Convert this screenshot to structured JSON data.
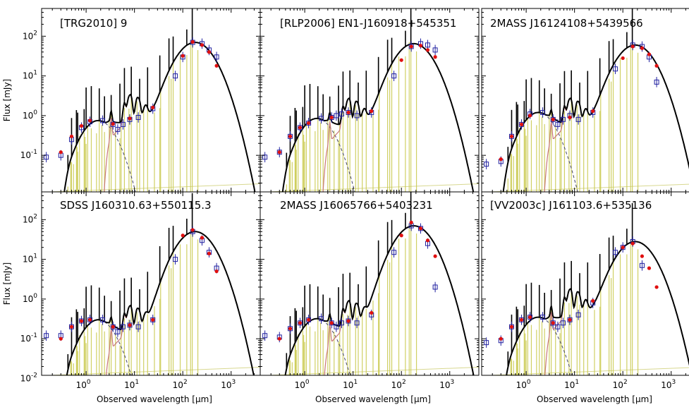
{
  "figure": {
    "ylabel": "Flux [mJy]",
    "xlabel": "Observed wavelength [μm]",
    "xscale": "log",
    "yscale": "log",
    "colors": {
      "total_model": "#000000",
      "dust_emission": "#c87878",
      "stellar_emission": "#444466",
      "line_templates": "#c8c84a",
      "observed_photometry": "#2020a0",
      "model_photometry": "#e01010",
      "flat_continuum": "#d8d890"
    }
  },
  "chart_data": [
    {
      "type": "scatter",
      "title": "[TRG2010] 9",
      "xlim": [
        0.12,
        4000
      ],
      "ylim": [
        0.012,
        500
      ],
      "xscale": "log",
      "yscale": "log",
      "x_tick_labels": [],
      "y_tick_labels": [
        "10^-1",
        "10^0",
        "10^1",
        "10^2"
      ],
      "series": [
        {
          "values": [
            [
              0.15,
              0.09
            ],
            [
              0.3,
              0.1
            ],
            [
              0.5,
              0.25
            ],
            [
              0.8,
              0.5
            ],
            [
              1.2,
              0.7
            ],
            [
              2.2,
              0.75
            ],
            [
              3.6,
              0.6
            ],
            [
              4.5,
              0.45
            ],
            [
              5.8,
              0.6
            ],
            [
              8,
              0.8
            ],
            [
              12,
              0.9
            ],
            [
              24,
              1.5
            ],
            [
              70,
              10
            ],
            [
              100,
              30
            ],
            [
              160,
              70
            ],
            [
              250,
              65
            ],
            [
              350,
              45
            ],
            [
              500,
              30
            ]
          ]
        },
        {
          "values": [
            [
              0.3,
              0.12
            ],
            [
              0.5,
              0.3
            ],
            [
              0.8,
              0.55
            ],
            [
              1.2,
              0.75
            ],
            [
              3.6,
              0.62
            ],
            [
              8,
              0.85
            ],
            [
              24,
              1.6
            ],
            [
              100,
              32
            ],
            [
              160,
              72
            ],
            [
              250,
              60
            ],
            [
              350,
              40
            ],
            [
              500,
              18
            ]
          ]
        }
      ]
    },
    {
      "type": "scatter",
      "title": "[RLP2006] EN1-J160918+545351",
      "xlim": [
        0.12,
        4000
      ],
      "ylim": [
        0.012,
        500
      ],
      "xscale": "log",
      "yscale": "log",
      "x_tick_labels": [],
      "y_tick_labels": [],
      "series": [
        {
          "values": [
            [
              0.15,
              0.09
            ],
            [
              0.3,
              0.12
            ],
            [
              0.5,
              0.3
            ],
            [
              0.8,
              0.5
            ],
            [
              1.2,
              0.65
            ],
            [
              2.2,
              0.85
            ],
            [
              3.6,
              0.9
            ],
            [
              4.5,
              1.0
            ],
            [
              5.8,
              1.1
            ],
            [
              8,
              1.2
            ],
            [
              12,
              1.0
            ],
            [
              24,
              1.2
            ],
            [
              70,
              10
            ],
            [
              160,
              55
            ],
            [
              250,
              65
            ],
            [
              350,
              60
            ],
            [
              500,
              45
            ]
          ]
        },
        {
          "values": [
            [
              0.3,
              0.12
            ],
            [
              0.5,
              0.3
            ],
            [
              0.8,
              0.5
            ],
            [
              1.2,
              0.65
            ],
            [
              3.6,
              0.9
            ],
            [
              8,
              1.2
            ],
            [
              24,
              1.3
            ],
            [
              100,
              25
            ],
            [
              160,
              55
            ],
            [
              250,
              58
            ],
            [
              350,
              45
            ],
            [
              500,
              30
            ]
          ]
        }
      ]
    },
    {
      "type": "scatter",
      "title": "2MASS J16124108+5439566",
      "xlim": [
        0.12,
        4000
      ],
      "ylim": [
        0.012,
        500
      ],
      "xscale": "log",
      "yscale": "log",
      "x_tick_labels": [],
      "y_tick_labels": [],
      "series": [
        {
          "values": [
            [
              0.15,
              0.06
            ],
            [
              0.3,
              0.07
            ],
            [
              0.5,
              0.3
            ],
            [
              0.8,
              0.6
            ],
            [
              1.2,
              1.1
            ],
            [
              2.2,
              1.2
            ],
            [
              3.6,
              0.8
            ],
            [
              4.5,
              0.6
            ],
            [
              5.8,
              0.8
            ],
            [
              8,
              1.0
            ],
            [
              12,
              0.8
            ],
            [
              24,
              1.2
            ],
            [
              70,
              15
            ],
            [
              160,
              60
            ],
            [
              250,
              55
            ],
            [
              350,
              30
            ],
            [
              500,
              7
            ]
          ]
        },
        {
          "values": [
            [
              0.3,
              0.08
            ],
            [
              0.5,
              0.3
            ],
            [
              0.8,
              0.6
            ],
            [
              1.2,
              1.0
            ],
            [
              3.6,
              0.8
            ],
            [
              8,
              0.9
            ],
            [
              24,
              1.3
            ],
            [
              100,
              28
            ],
            [
              160,
              55
            ],
            [
              250,
              50
            ],
            [
              350,
              35
            ],
            [
              500,
              18
            ]
          ]
        }
      ]
    },
    {
      "type": "scatter",
      "title": "SDSS J160310.63+550115.3",
      "xlim": [
        0.12,
        4000
      ],
      "ylim": [
        0.012,
        500
      ],
      "xscale": "log",
      "yscale": "log",
      "x_tick_labels": [
        "10^0",
        "10^1",
        "10^2",
        "10^3"
      ],
      "y_tick_labels": [
        "10^-2",
        "10^-1",
        "10^0",
        "10^1",
        "10^2"
      ],
      "series": [
        {
          "values": [
            [
              0.15,
              0.12
            ],
            [
              0.3,
              0.12
            ],
            [
              0.5,
              0.2
            ],
            [
              0.8,
              0.28
            ],
            [
              1.2,
              0.3
            ],
            [
              2.2,
              0.3
            ],
            [
              3.6,
              0.2
            ],
            [
              4.5,
              0.15
            ],
            [
              5.8,
              0.2
            ],
            [
              8,
              0.22
            ],
            [
              12,
              0.2
            ],
            [
              24,
              0.3
            ],
            [
              70,
              10
            ],
            [
              160,
              50
            ],
            [
              250,
              30
            ],
            [
              350,
              15
            ],
            [
              500,
              6
            ]
          ]
        },
        {
          "values": [
            [
              0.3,
              0.1
            ],
            [
              0.5,
              0.2
            ],
            [
              0.8,
              0.28
            ],
            [
              1.2,
              0.3
            ],
            [
              3.6,
              0.2
            ],
            [
              8,
              0.22
            ],
            [
              24,
              0.3
            ],
            [
              100,
              40
            ],
            [
              160,
              55
            ],
            [
              250,
              35
            ],
            [
              350,
              14
            ],
            [
              500,
              5
            ]
          ]
        }
      ]
    },
    {
      "type": "scatter",
      "title": "2MASS J16065766+5403231",
      "xlim": [
        0.12,
        4000
      ],
      "ylim": [
        0.012,
        500
      ],
      "xscale": "log",
      "yscale": "log",
      "x_tick_labels": [
        "10^0",
        "10^1",
        "10^2",
        "10^3"
      ],
      "y_tick_labels": [],
      "series": [
        {
          "values": [
            [
              0.15,
              0.12
            ],
            [
              0.3,
              0.11
            ],
            [
              0.5,
              0.18
            ],
            [
              0.8,
              0.25
            ],
            [
              1.2,
              0.3
            ],
            [
              2.2,
              0.32
            ],
            [
              3.6,
              0.25
            ],
            [
              4.5,
              0.2
            ],
            [
              5.8,
              0.25
            ],
            [
              8,
              0.28
            ],
            [
              12,
              0.25
            ],
            [
              24,
              0.4
            ],
            [
              70,
              15
            ],
            [
              160,
              70
            ],
            [
              250,
              60
            ],
            [
              350,
              25
            ],
            [
              500,
              2
            ]
          ]
        },
        {
          "values": [
            [
              0.3,
              0.1
            ],
            [
              0.5,
              0.18
            ],
            [
              0.8,
              0.25
            ],
            [
              1.2,
              0.3
            ],
            [
              3.6,
              0.25
            ],
            [
              8,
              0.28
            ],
            [
              24,
              0.45
            ],
            [
              100,
              40
            ],
            [
              160,
              85
            ],
            [
              250,
              60
            ],
            [
              350,
              30
            ],
            [
              500,
              12
            ]
          ]
        }
      ]
    },
    {
      "type": "scatter",
      "title": "[VV2003c] J161103.6+535136",
      "xlim": [
        0.12,
        4000
      ],
      "ylim": [
        0.012,
        500
      ],
      "xscale": "log",
      "yscale": "log",
      "x_tick_labels": [
        "10^0",
        "10^1",
        "10^2",
        "10^3"
      ],
      "y_tick_labels": [],
      "series": [
        {
          "values": [
            [
              0.15,
              0.08
            ],
            [
              0.3,
              0.09
            ],
            [
              0.5,
              0.2
            ],
            [
              0.8,
              0.3
            ],
            [
              1.2,
              0.35
            ],
            [
              2.2,
              0.35
            ],
            [
              3.6,
              0.25
            ],
            [
              4.5,
              0.2
            ],
            [
              5.8,
              0.25
            ],
            [
              8,
              0.3
            ],
            [
              12,
              0.4
            ],
            [
              24,
              0.8
            ],
            [
              70,
              15
            ],
            [
              100,
              20
            ],
            [
              160,
              28
            ],
            [
              250,
              7
            ]
          ]
        },
        {
          "values": [
            [
              0.3,
              0.1
            ],
            [
              0.5,
              0.2
            ],
            [
              0.8,
              0.3
            ],
            [
              1.2,
              0.35
            ],
            [
              3.6,
              0.25
            ],
            [
              8,
              0.3
            ],
            [
              24,
              0.9
            ],
            [
              100,
              20
            ],
            [
              160,
              25
            ],
            [
              250,
              12
            ],
            [
              350,
              6
            ],
            [
              500,
              2
            ]
          ]
        }
      ]
    }
  ]
}
